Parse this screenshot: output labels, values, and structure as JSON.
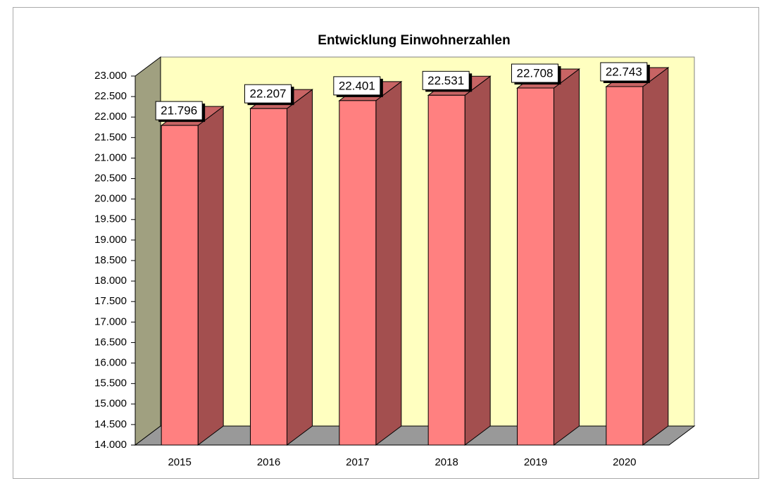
{
  "chart_data": {
    "type": "bar3d",
    "title": "Entwicklung Einwohnerzahlen",
    "categories": [
      "2015",
      "2016",
      "2017",
      "2018",
      "2019",
      "2020"
    ],
    "values": [
      21796,
      22207,
      22401,
      22531,
      22708,
      22743
    ],
    "value_labels": [
      "21.796",
      "22.207",
      "22.401",
      "22.531",
      "22.708",
      "22.743"
    ],
    "color": "#ff8080",
    "ylim": [
      14000,
      23000
    ],
    "yticks": [
      {
        "value": 14000,
        "label": "14.000"
      },
      {
        "value": 14500,
        "label": "14.500"
      },
      {
        "value": 15000,
        "label": "15.000"
      },
      {
        "value": 15500,
        "label": "15.500"
      },
      {
        "value": 16000,
        "label": "16.000"
      },
      {
        "value": 16500,
        "label": "16.500"
      },
      {
        "value": 17000,
        "label": "17.000"
      },
      {
        "value": 17500,
        "label": "17.500"
      },
      {
        "value": 18000,
        "label": "18.000"
      },
      {
        "value": 18500,
        "label": "18.500"
      },
      {
        "value": 19000,
        "label": "19.000"
      },
      {
        "value": 19500,
        "label": "19.500"
      },
      {
        "value": 20000,
        "label": "20.000"
      },
      {
        "value": 20500,
        "label": "20.500"
      },
      {
        "value": 21000,
        "label": "21.000"
      },
      {
        "value": 21500,
        "label": "21.500"
      },
      {
        "value": 22000,
        "label": "22.000"
      },
      {
        "value": 22500,
        "label": "22.500"
      },
      {
        "value": 23000,
        "label": "23.000"
      }
    ]
  }
}
